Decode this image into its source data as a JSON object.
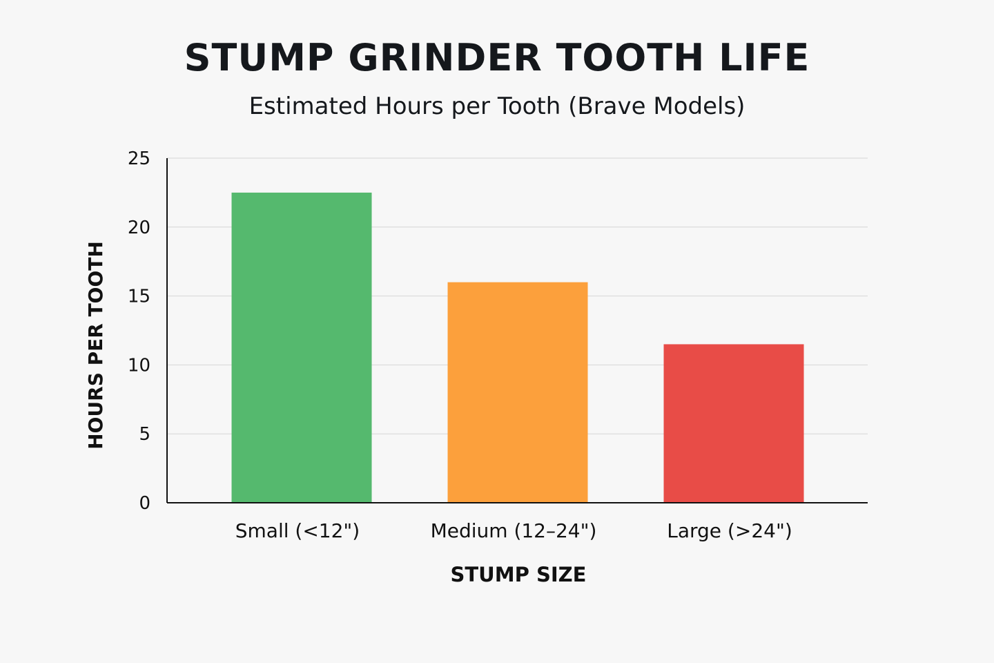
{
  "chart_data": {
    "type": "bar",
    "title": "STUMP GRINDER TOOTH LIFE",
    "subtitle": "Estimated Hours per Tooth (Brave Models)",
    "xlabel": "STUMP SIZE",
    "ylabel": "HOURS PER TOOTH",
    "categories": [
      "Small (<12\")",
      "Medium (12–24\")",
      "Large (>24\")"
    ],
    "values": [
      22.5,
      16,
      11.5
    ],
    "colors": [
      "#55b96e",
      "#fca03c",
      "#e84c47"
    ],
    "ylim": [
      0,
      25
    ],
    "yticks": [
      0,
      5,
      10,
      15,
      20,
      25
    ],
    "grid": true
  }
}
